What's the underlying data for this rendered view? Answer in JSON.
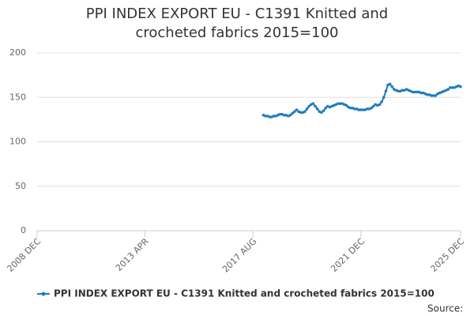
{
  "chart_data": {
    "type": "line",
    "title": "PPI INDEX EXPORT EU - C1391 Knitted and crocheted fabrics 2015=100",
    "source": "Source:",
    "categories": [
      "2008 DEC",
      null,
      null,
      null,
      null,
      null,
      null,
      null,
      null,
      null,
      null,
      null,
      null,
      null,
      null,
      null,
      null,
      null,
      null,
      null,
      null,
      null,
      null,
      null,
      null,
      null,
      null,
      null,
      null,
      null,
      null,
      null,
      null,
      null,
      null,
      null,
      null,
      null,
      null,
      null,
      null,
      null,
      null,
      null,
      null,
      null,
      null,
      null,
      null,
      null,
      null,
      null,
      "2013 APR",
      null,
      null,
      null,
      null,
      null,
      null,
      null,
      null,
      null,
      null,
      null,
      null,
      null,
      null,
      null,
      null,
      null,
      null,
      null,
      null,
      null,
      null,
      null,
      null,
      null,
      null,
      null,
      null,
      null,
      null,
      null,
      null,
      null,
      null,
      null,
      null,
      null,
      null,
      null,
      null,
      null,
      null,
      null,
      null,
      null,
      null,
      null,
      null,
      null,
      null,
      null,
      "2017 AUG",
      null,
      null,
      null,
      null,
      null,
      null,
      null,
      null,
      null,
      null,
      null,
      null,
      null,
      null,
      null,
      null,
      null,
      null,
      null,
      null,
      null,
      null,
      null,
      null,
      null,
      null,
      null,
      null,
      null,
      null,
      null,
      null,
      null,
      null,
      null,
      null,
      null,
      null,
      null,
      null,
      null,
      null,
      null,
      null,
      null,
      null,
      null,
      null,
      null,
      null,
      null,
      "2021 DEC",
      null,
      null,
      null,
      null,
      null,
      null,
      null,
      null,
      null,
      null,
      null,
      null,
      null,
      null,
      null,
      null,
      null,
      null,
      null,
      null,
      null,
      null,
      null,
      null,
      null,
      null,
      null,
      null,
      null,
      null,
      null,
      null,
      null,
      null,
      null,
      null,
      null,
      null,
      null,
      null,
      null,
      null,
      null,
      null,
      null,
      null,
      null,
      "2025 DEC"
    ],
    "series": [
      {
        "name": "PPI INDEX EXPORT EU - C1391 Knitted and crocheted fabrics 2015=100",
        "color": "#1f7bbf",
        "values": [
          null,
          null,
          null,
          null,
          null,
          null,
          null,
          null,
          null,
          null,
          null,
          null,
          null,
          null,
          null,
          null,
          null,
          null,
          null,
          null,
          null,
          null,
          null,
          null,
          null,
          null,
          null,
          null,
          null,
          null,
          null,
          null,
          null,
          null,
          null,
          null,
          null,
          null,
          null,
          null,
          null,
          null,
          null,
          null,
          null,
          null,
          null,
          null,
          null,
          null,
          null,
          null,
          null,
          null,
          null,
          null,
          null,
          null,
          null,
          null,
          null,
          null,
          null,
          null,
          null,
          null,
          null,
          null,
          null,
          null,
          null,
          null,
          null,
          null,
          null,
          null,
          null,
          null,
          null,
          null,
          null,
          null,
          null,
          null,
          null,
          null,
          null,
          null,
          null,
          null,
          null,
          null,
          null,
          null,
          null,
          null,
          null,
          null,
          null,
          null,
          null,
          null,
          null,
          null,
          null,
          null,
          null,
          null,
          null,
          130,
          129,
          129,
          128,
          128,
          129,
          129,
          130,
          131,
          131,
          130,
          130,
          129,
          130,
          132,
          134,
          136,
          134,
          133,
          133,
          134,
          137,
          140,
          142,
          143,
          140,
          137,
          134,
          133,
          135,
          138,
          140,
          139,
          140,
          141,
          142,
          143,
          143,
          143,
          142,
          141,
          139,
          138,
          138,
          137,
          137,
          136,
          136,
          136,
          136,
          137,
          137,
          138,
          140,
          142,
          141,
          142,
          145,
          150,
          157,
          164,
          165,
          162,
          159,
          158,
          157,
          157,
          158,
          158,
          159,
          158,
          157,
          156,
          156,
          156,
          156,
          155,
          155,
          154,
          153,
          153,
          152,
          152,
          152,
          154,
          155,
          156,
          157,
          158,
          159,
          161,
          161,
          161,
          162,
          163,
          162
        ]
      }
    ],
    "ylim": [
      0,
      200
    ],
    "yticks": [
      0,
      50,
      100,
      150,
      200
    ],
    "grid": true,
    "legend": "bottom"
  }
}
